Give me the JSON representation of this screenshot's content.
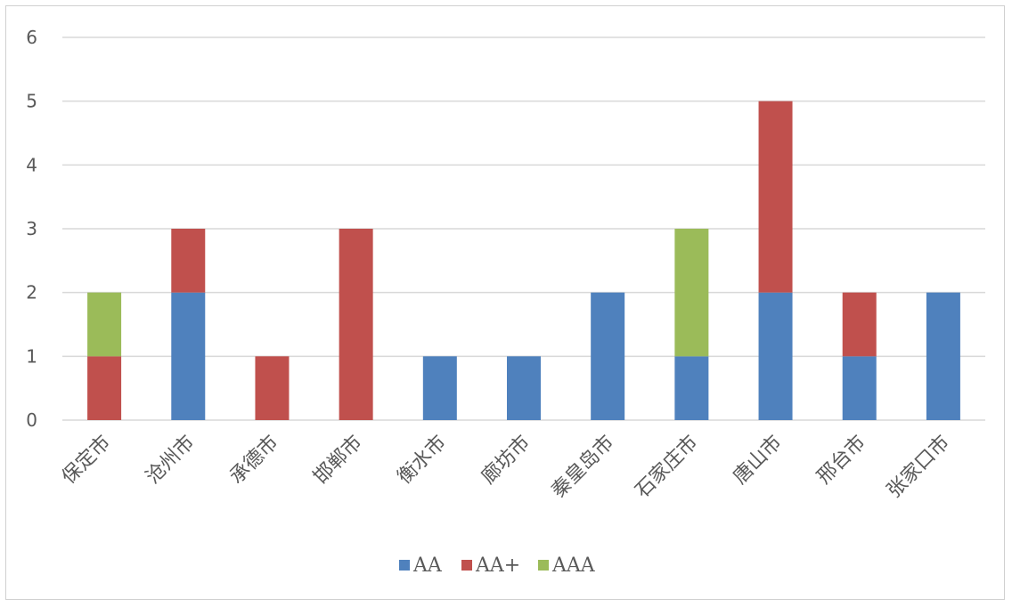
{
  "chart_data": {
    "type": "bar",
    "stacked": true,
    "categories": [
      "保定市",
      "沧州市",
      "承德市",
      "邯郸市",
      "衡水市",
      "廊坊市",
      "秦皇岛市",
      "石家庄市",
      "唐山市",
      "邢台市",
      "张家口市"
    ],
    "series": [
      {
        "name": "AA",
        "color": "#4f81bd",
        "values": [
          0,
          2,
          0,
          0,
          1,
          1,
          2,
          1,
          2,
          1,
          2
        ]
      },
      {
        "name": "AA+",
        "color": "#c0504d",
        "values": [
          1,
          1,
          1,
          3,
          0,
          0,
          0,
          0,
          3,
          1,
          0
        ]
      },
      {
        "name": "AAA",
        "color": "#9bbb59",
        "values": [
          1,
          0,
          0,
          0,
          0,
          0,
          0,
          2,
          0,
          0,
          0
        ]
      }
    ],
    "ylim": [
      0,
      6
    ],
    "yticks": [
      "0",
      "1",
      "2",
      "3",
      "4",
      "5",
      "6"
    ],
    "grid": true,
    "legend_position": "bottom"
  }
}
